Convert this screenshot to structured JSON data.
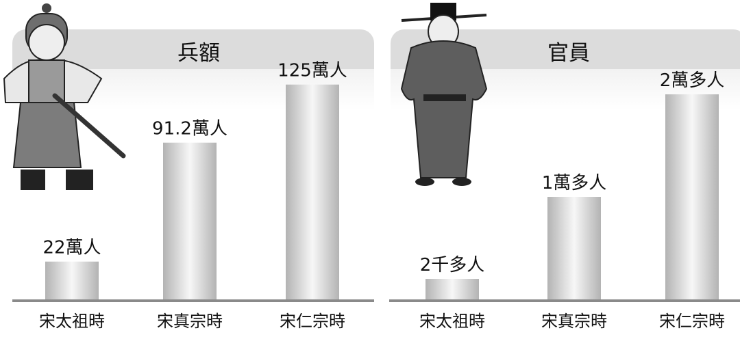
{
  "chart_data": [
    {
      "type": "bar",
      "title": "兵額",
      "categories": [
        "宋太祖時",
        "宋真宗時",
        "宋仁宗時"
      ],
      "values": [
        22,
        91.2,
        125
      ],
      "value_labels": [
        "22萬人",
        "91.2萬人",
        "125萬人"
      ],
      "unit": "萬人",
      "ylim": [
        0,
        140
      ],
      "grid": false,
      "illustration": "soldier-figure"
    },
    {
      "type": "bar",
      "title": "官員",
      "categories": [
        "宋太祖時",
        "宋真宗時",
        "宋仁宗時"
      ],
      "values": [
        2000,
        10000,
        20000
      ],
      "value_labels": [
        "2千多人",
        "1萬多人",
        "2萬多人"
      ],
      "unit": "人",
      "ylim": [
        0,
        22000
      ],
      "grid": false,
      "illustration": "official-figure"
    }
  ],
  "colors": {
    "bar_light": "#f4f4f4",
    "bar_dark": "#b0b0b0",
    "axis": "#8a8a8a",
    "header": "#dcdcdc"
  }
}
